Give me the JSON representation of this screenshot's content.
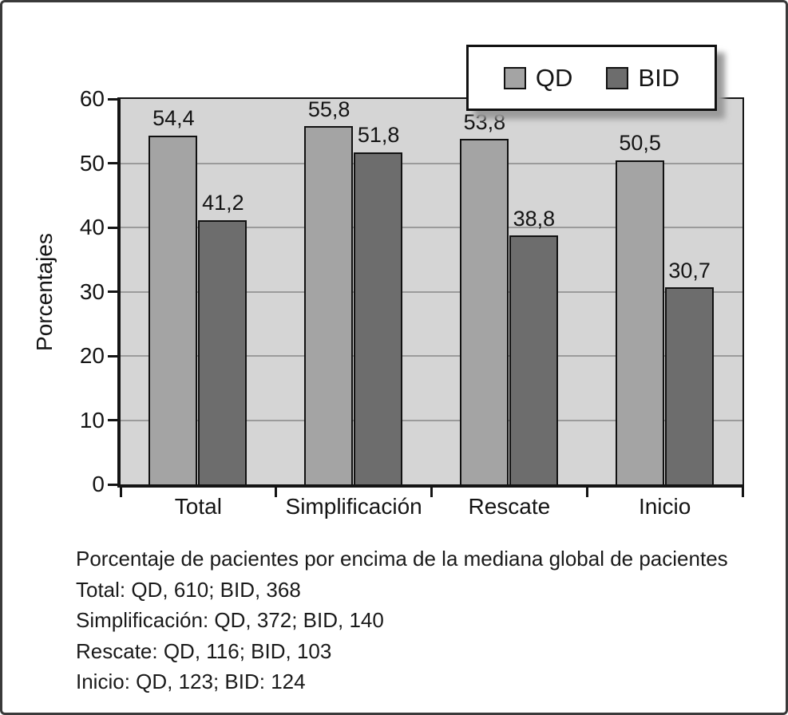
{
  "chart_data": {
    "type": "bar",
    "categories": [
      "Total",
      "Simplificación",
      "Rescate",
      "Inicio"
    ],
    "series": [
      {
        "name": "QD",
        "color": "#a4a4a4",
        "values": [
          54.4,
          55.8,
          53.8,
          50.5
        ],
        "labels": [
          "54,4",
          "55,8",
          "53,8",
          "50,5"
        ]
      },
      {
        "name": "BID",
        "color": "#6d6d6d",
        "values": [
          41.2,
          51.8,
          38.8,
          30.7
        ],
        "labels": [
          "41,2",
          "51,8",
          "38,8",
          "30,7"
        ]
      }
    ],
    "title": "",
    "xlabel": "",
    "ylabel": "Porcentajes",
    "ylim": [
      0,
      60
    ],
    "yticks": [
      0,
      10,
      20,
      30,
      40,
      50,
      60
    ],
    "grid": true,
    "legend_position": "top-right",
    "plot_background": "#d5d5d5",
    "gridline_color": "#9b9b9b"
  },
  "legend": {
    "items": [
      {
        "label": "QD",
        "color": "#a4a4a4"
      },
      {
        "label": "BID",
        "color": "#6d6d6d"
      }
    ]
  },
  "caption": {
    "lines": [
      "Porcentaje de pacientes por encima de la mediana global de pacientes",
      "Total: QD, 610; BID, 368",
      "Simplificación: QD, 372; BID, 140",
      "Rescate: QD, 116; BID, 103",
      "Inicio: QD, 123; BID: 124"
    ]
  },
  "colors": {
    "frame_border": "#3a3a3a",
    "axis": "#141414",
    "text": "#141414"
  }
}
